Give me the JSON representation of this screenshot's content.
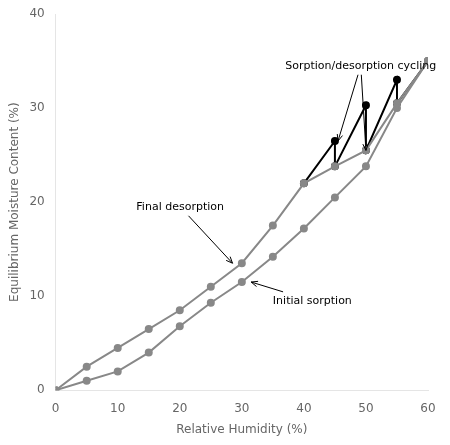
{
  "chart_data": {
    "type": "line",
    "xlabel": "Relative Humidity (%)",
    "ylabel": "Equilibrium Moisture Content (%)",
    "xlim": [
      0,
      60
    ],
    "ylim": [
      0,
      40
    ],
    "xticks": [
      0,
      10,
      20,
      30,
      40,
      50,
      60
    ],
    "yticks": [
      0,
      10,
      20,
      30,
      40
    ],
    "grid": false,
    "series": [
      {
        "x": [
          0,
          5,
          10,
          15,
          20,
          25,
          30,
          35,
          40,
          45,
          50,
          55,
          60
        ],
        "values": [
          0,
          1.0,
          2.0,
          4.0,
          6.8,
          9.3,
          11.5,
          14.2,
          17.2,
          20.5,
          23.8,
          30.0,
          35.0
        ],
        "color": "#888888",
        "marker": "circle"
      },
      {
        "x": [
          0,
          5,
          10,
          15,
          20,
          25,
          30,
          35,
          40,
          45,
          50,
          55,
          60
        ],
        "values": [
          0,
          2.5,
          4.5,
          6.5,
          8.5,
          11.0,
          13.5,
          17.5,
          22.0,
          23.8,
          25.5,
          30.5,
          35.0
        ],
        "color": "#888888",
        "marker": "circle"
      },
      {
        "x": [
          40,
          45,
          45,
          50,
          50,
          55,
          55,
          60
        ],
        "values": [
          22.0,
          26.5,
          23.8,
          30.3,
          25.5,
          33.0,
          30.5,
          35.0
        ],
        "color": "#000000",
        "marker": "circle"
      }
    ],
    "annotations": [
      {
        "text": "Sorption/desorption cycling",
        "xy": [
          [
            45.5,
            26.5
          ],
          [
            50.0,
            25.5
          ]
        ],
        "xytext": [
          37.0,
          34.5
        ]
      },
      {
        "text": "Final desorption",
        "xy": [
          [
            28.5,
            13.5
          ]
        ],
        "xytext": [
          13.0,
          19.5
        ]
      },
      {
        "text": "Initial sorption",
        "xy": [
          [
            31.5,
            11.5
          ]
        ],
        "xytext": [
          35.0,
          9.5
        ]
      }
    ]
  }
}
